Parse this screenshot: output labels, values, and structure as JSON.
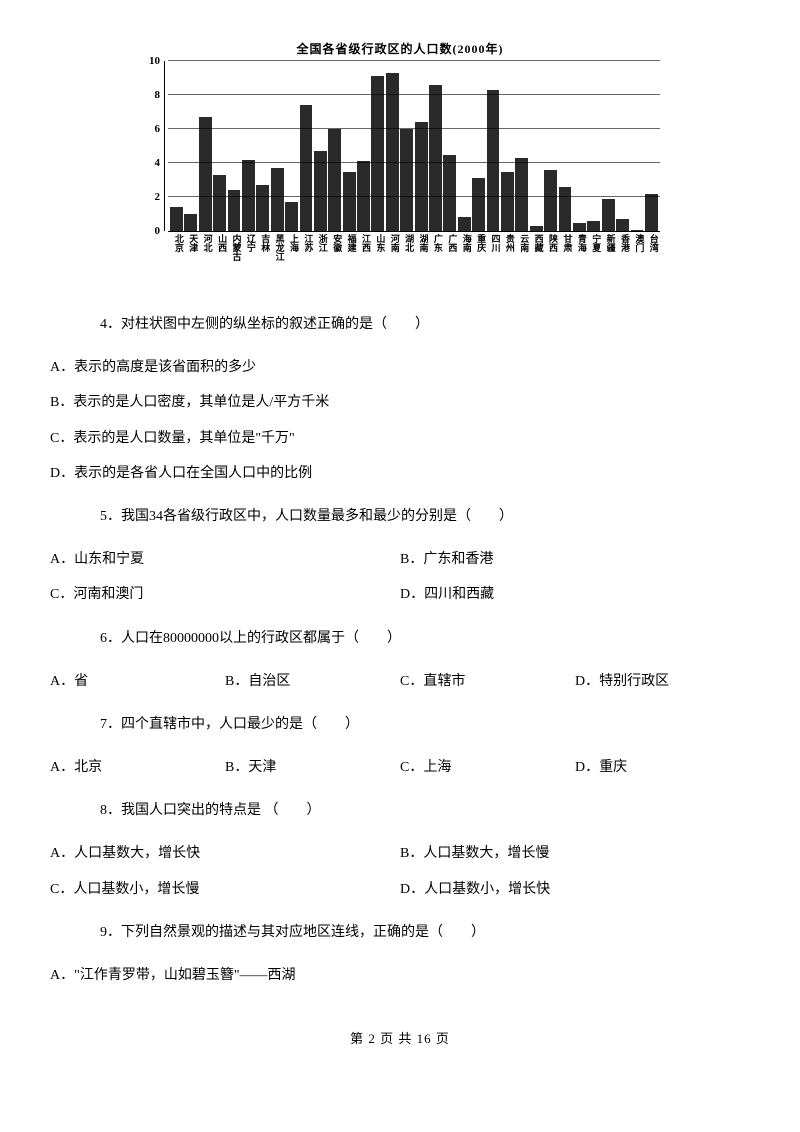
{
  "chart": {
    "title": "全国各省级行政区的人口数(2000年)",
    "ylim": [
      0,
      10
    ],
    "yticks": [
      0,
      2,
      4,
      6,
      8,
      10
    ],
    "grid_y": [
      2,
      4,
      6,
      8,
      10
    ],
    "bar_color": "#2a2a2a",
    "background_color": "#ffffff",
    "grid_color": "#000000",
    "title_fontsize": 12,
    "label_fontsize": 9,
    "categories": [
      "北京",
      "天津",
      "河北",
      "山西",
      "内蒙古",
      "辽宁",
      "吉林",
      "黑龙江",
      "上海",
      "江苏",
      "浙江",
      "安徽",
      "福建",
      "江西",
      "山东",
      "河南",
      "湖北",
      "湖南",
      "广东",
      "广西",
      "海南",
      "重庆",
      "四川",
      "贵州",
      "云南",
      "西藏",
      "陕西",
      "甘肃",
      "青海",
      "宁夏",
      "新疆",
      "香港",
      "澳门",
      "台湾"
    ],
    "values": [
      1.4,
      1.0,
      6.7,
      3.3,
      2.4,
      4.2,
      2.7,
      3.7,
      1.7,
      7.4,
      4.7,
      6.0,
      3.5,
      4.1,
      9.1,
      9.3,
      6.0,
      6.4,
      8.6,
      4.5,
      0.8,
      3.1,
      8.3,
      3.5,
      4.3,
      0.3,
      3.6,
      2.6,
      0.5,
      0.6,
      1.9,
      0.7,
      0.05,
      2.2
    ]
  },
  "q4": {
    "stem": "4．对柱状图中左侧的纵坐标的叙述正确的是（　　）",
    "A": "A．表示的高度是该省面积的多少",
    "B": "B．表示的是人口密度，其单位是人/平方千米",
    "C": "C．表示的是人口数量，其单位是\"千万\"",
    "D": "D．表示的是各省人口在全国人口中的比例"
  },
  "q5": {
    "stem": "5．我国34各省级行政区中，人口数量最多和最少的分别是（　　）",
    "A": "A．山东和宁夏",
    "B": "B．广东和香港",
    "C": "C．河南和澳门",
    "D": "D．四川和西藏"
  },
  "q6": {
    "stem": "6．人口在80000000以上的行政区都属于（　　）",
    "A": "A．省",
    "B": "B．自治区",
    "C": "C．直辖市",
    "D": "D．特别行政区"
  },
  "q7": {
    "stem": "7．四个直辖市中，人口最少的是（　　）",
    "A": "A．北京",
    "B": "B．天津",
    "C": "C．上海",
    "D": "D．重庆"
  },
  "q8": {
    "stem": "8．我国人口突出的特点是 （　　）",
    "A": "A．人口基数大，增长快",
    "B": "B．人口基数大，增长慢",
    "C": "C．人口基数小，增长慢",
    "D": "D．人口基数小，增长快"
  },
  "q9": {
    "stem": "9．下列自然景观的描述与其对应地区连线，正确的是（　　）",
    "A": "A．\"江作青罗带，山如碧玉簪\"——西湖"
  },
  "footer": {
    "text": "第 2 页 共 16 页"
  }
}
